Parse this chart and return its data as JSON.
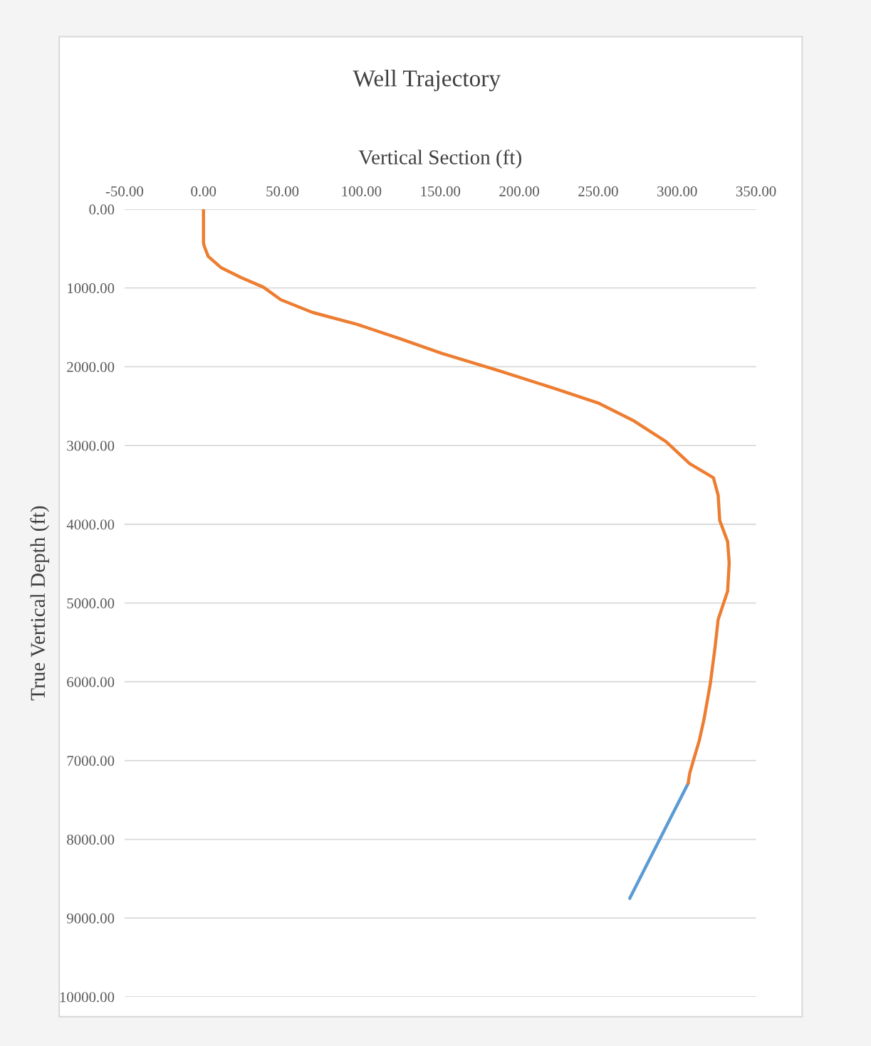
{
  "chart_data": {
    "type": "line",
    "title": "Well Trajectory",
    "xlabel": "Vertical Section (ft)",
    "ylabel": "True Vertical Depth (ft)",
    "xlim": [
      -50,
      350
    ],
    "ylim": [
      10000,
      0
    ],
    "xticks": [
      {
        "value": -50,
        "label": "-50.00"
      },
      {
        "value": 0,
        "label": "0.00"
      },
      {
        "value": 50,
        "label": "50.00"
      },
      {
        "value": 100,
        "label": "100.00"
      },
      {
        "value": 150,
        "label": "150.00"
      },
      {
        "value": 200,
        "label": "200.00"
      },
      {
        "value": 250,
        "label": "250.00"
      },
      {
        "value": 300,
        "label": "300.00"
      },
      {
        "value": 350,
        "label": "350.00"
      }
    ],
    "yticks": [
      {
        "value": 0,
        "label": "0.00"
      },
      {
        "value": 1000,
        "label": "1000.00"
      },
      {
        "value": 2000,
        "label": "2000.00"
      },
      {
        "value": 3000,
        "label": "3000.00"
      },
      {
        "value": 4000,
        "label": "4000.00"
      },
      {
        "value": 5000,
        "label": "5000.00"
      },
      {
        "value": 6000,
        "label": "6000.00"
      },
      {
        "value": 7000,
        "label": "7000.00"
      },
      {
        "value": 8000,
        "label": "8000.00"
      },
      {
        "value": 9000,
        "label": "9000.00"
      },
      {
        "value": 10000,
        "label": "10000.00"
      }
    ],
    "grid": "y",
    "marker": "none",
    "line_style": "solid",
    "series": [
      {
        "color": "#5b9bd5",
        "x": [
          307,
          289,
          270
        ],
        "values": [
          7290,
          8000,
          8750
        ]
      },
      {
        "color": "#ed7d31",
        "x": [
          0,
          0,
          0.5,
          3,
          11,
          24,
          38,
          49,
          69,
          97,
          124,
          151,
          187,
          223,
          250,
          272,
          293,
          308,
          323,
          326,
          327,
          332,
          333,
          332,
          326,
          324,
          321,
          317,
          314,
          310,
          308,
          307
        ],
        "values": [
          0,
          430,
          470,
          600,
          740,
          870,
          990,
          1150,
          1310,
          1460,
          1640,
          1830,
          2050,
          2280,
          2460,
          2680,
          2950,
          3230,
          3410,
          3630,
          3950,
          4220,
          4490,
          4850,
          5210,
          5570,
          6030,
          6480,
          6750,
          7020,
          7160,
          7290
        ]
      }
    ]
  }
}
